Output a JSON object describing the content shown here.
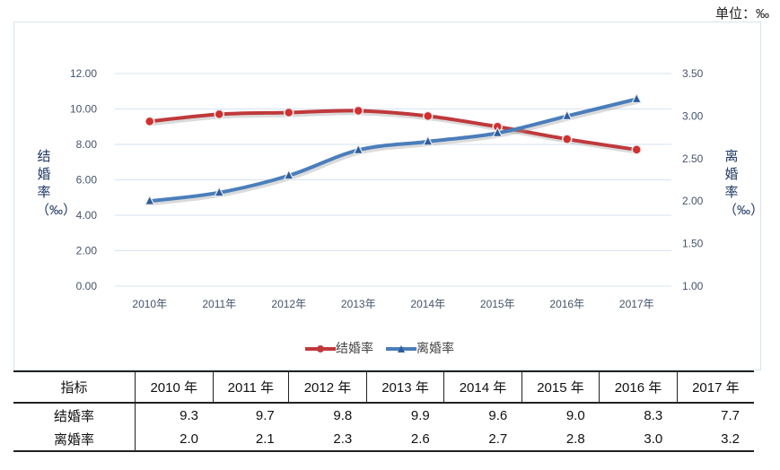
{
  "unit_label": "单位：‰",
  "chart_data": {
    "type": "line",
    "categories": [
      "2010年",
      "2011年",
      "2012年",
      "2013年",
      "2014年",
      "2015年",
      "2016年",
      "2017年"
    ],
    "series": [
      {
        "name": "结婚率",
        "axis": "left",
        "color": "#c0393b",
        "marker": "circle",
        "values": [
          9.3,
          9.7,
          9.8,
          9.9,
          9.6,
          9.0,
          8.3,
          7.7
        ]
      },
      {
        "name": "离婚率",
        "axis": "right",
        "color": "#4a7ebb",
        "marker": "triangle",
        "values": [
          2.0,
          2.1,
          2.3,
          2.6,
          2.7,
          2.8,
          3.0,
          3.2
        ]
      }
    ],
    "ylabel": "结婚率（‰）",
    "y2label": "离婚率（‰）",
    "ylim": [
      0,
      12
    ],
    "y2lim": [
      1,
      3.5
    ],
    "yticks": [
      "0.00",
      "2.00",
      "4.00",
      "6.00",
      "8.00",
      "10.00",
      "12.00"
    ],
    "y2ticks": [
      "1.00",
      "1.50",
      "2.00",
      "2.50",
      "3.00",
      "3.50"
    ],
    "grid": true,
    "legend": "bottom"
  },
  "table": {
    "header": [
      "指标",
      "2010 年",
      "2011 年",
      "2012 年",
      "2013 年",
      "2014 年",
      "2015 年",
      "2016 年",
      "2017 年"
    ],
    "rows": [
      [
        "结婚率",
        "9.3",
        "9.7",
        "9.8",
        "9.9",
        "9.6",
        "9.0",
        "8.3",
        "7.7"
      ],
      [
        "离婚率",
        "2.0",
        "2.1",
        "2.3",
        "2.6",
        "2.7",
        "2.8",
        "3.0",
        "3.2"
      ]
    ]
  }
}
